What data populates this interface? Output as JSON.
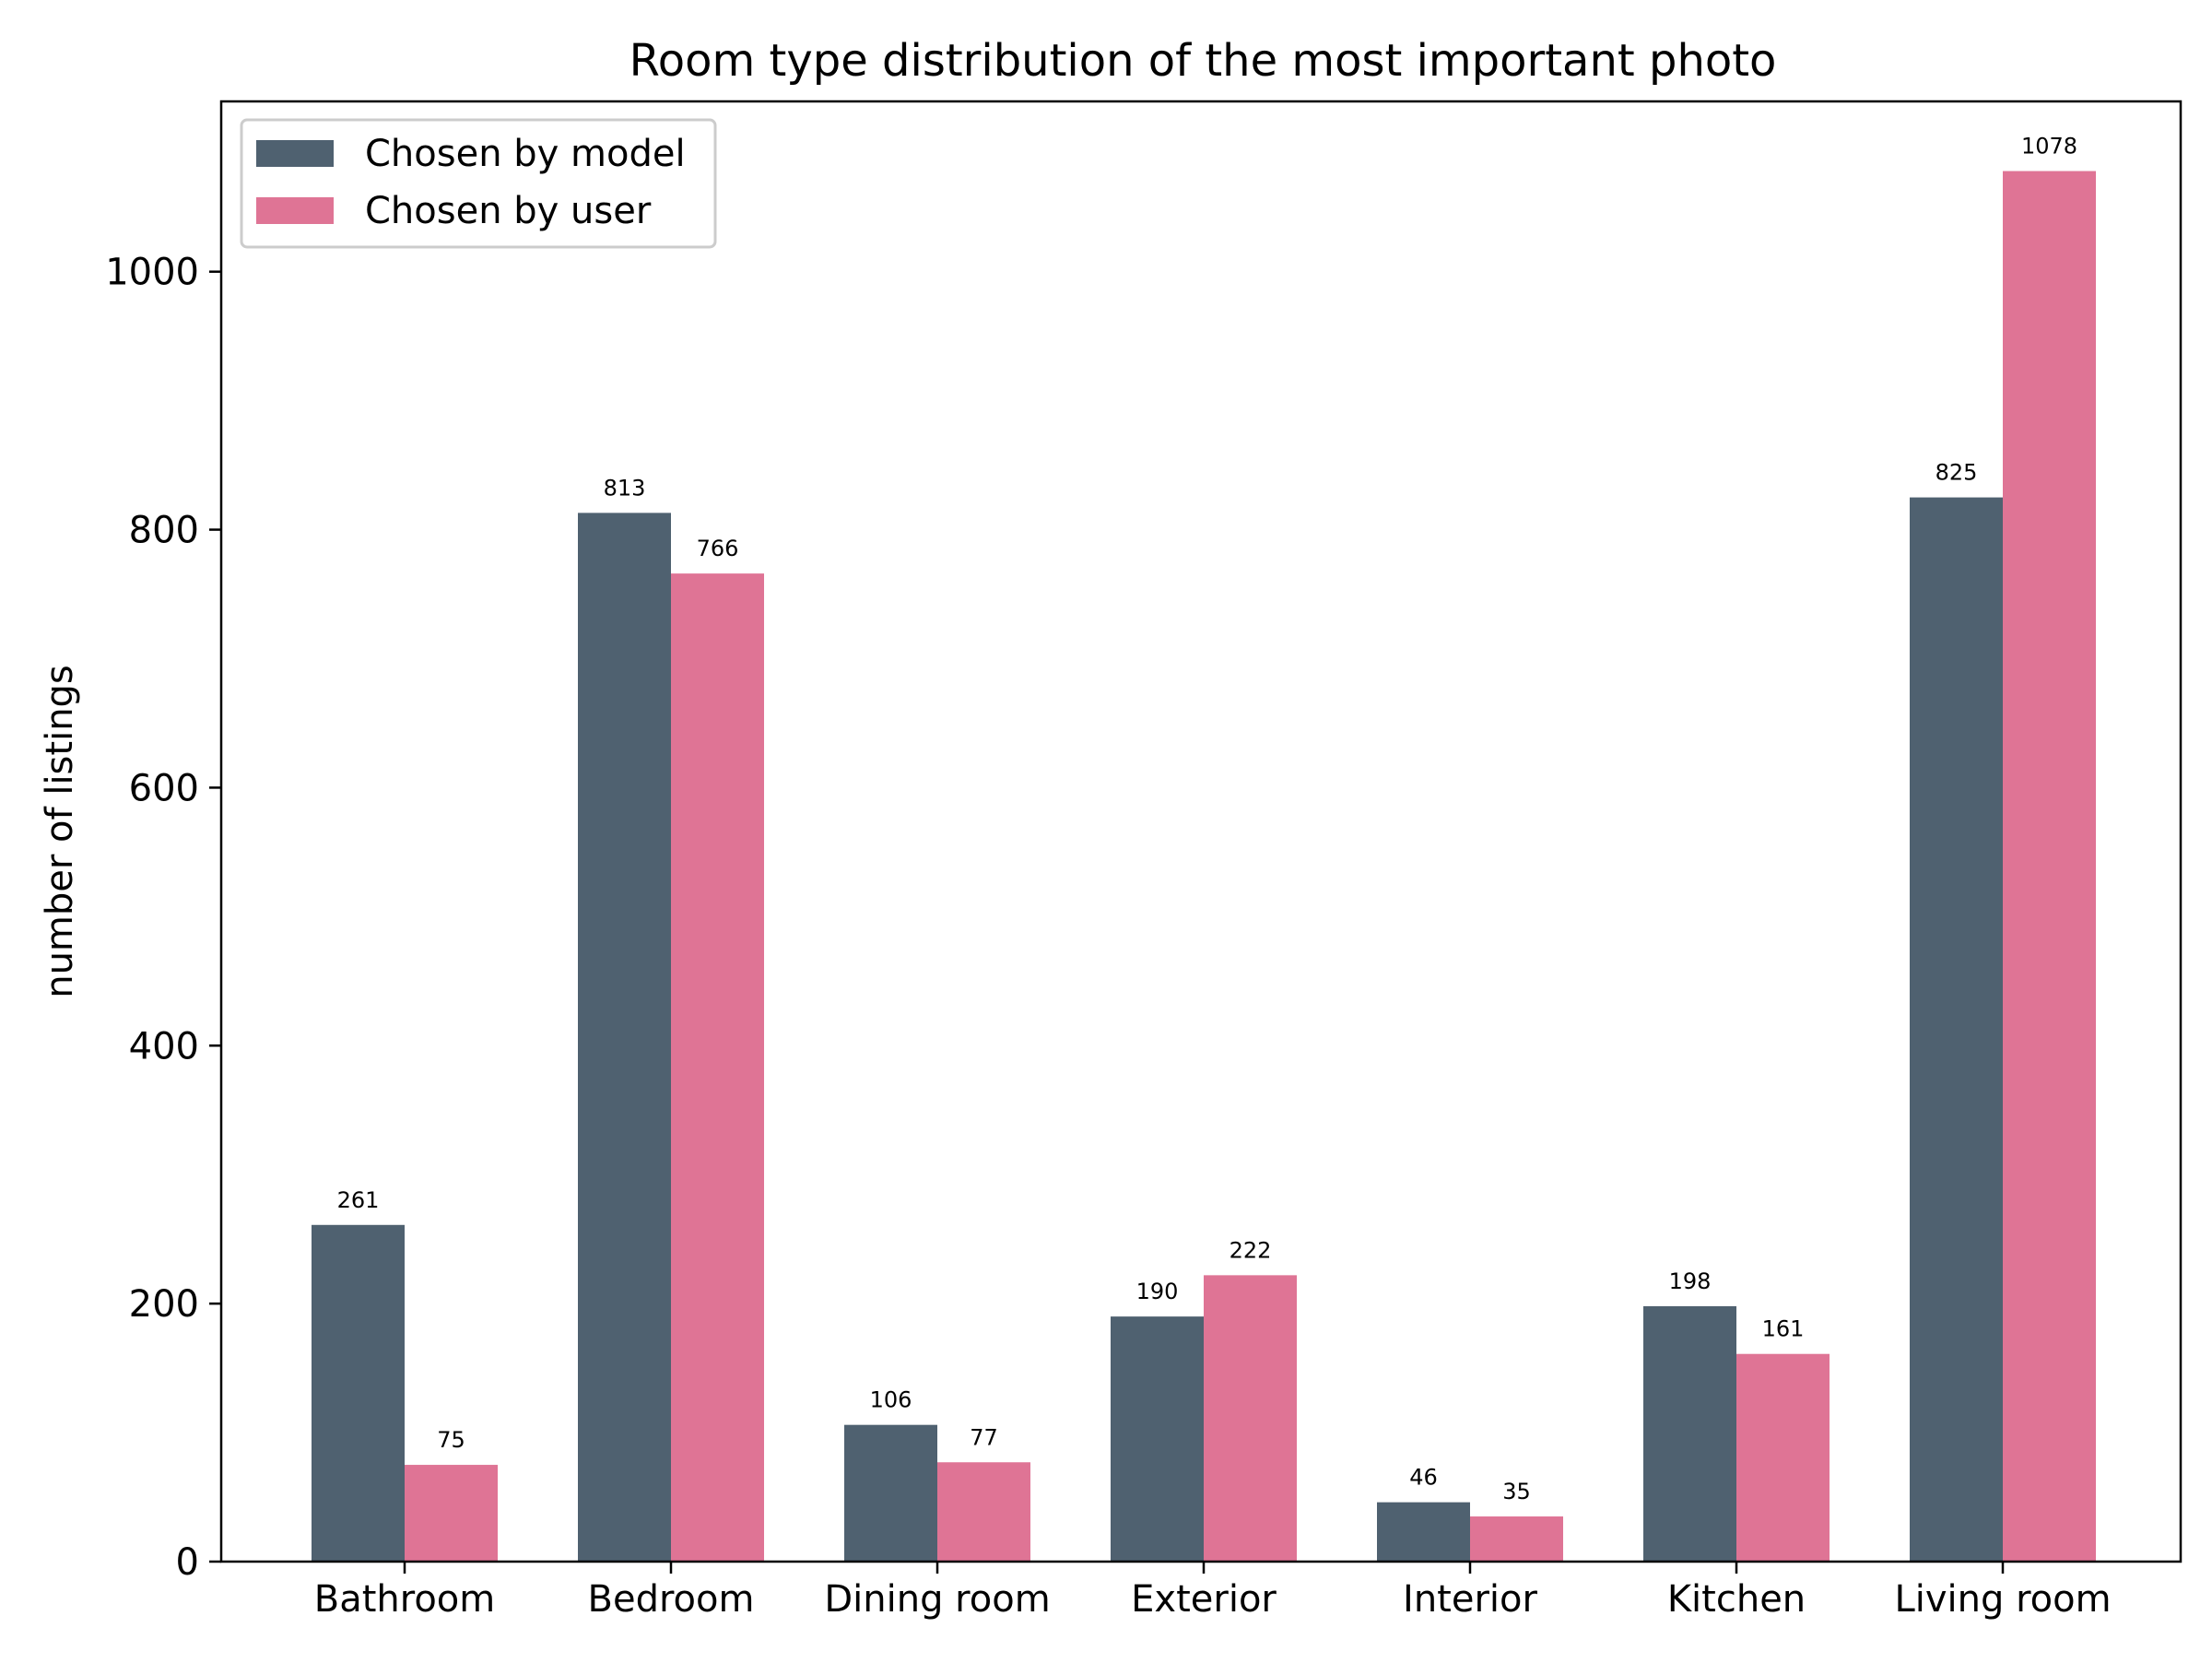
{
  "chart_data": {
    "type": "bar",
    "title": "Room type distribution of the most important photo",
    "xlabel": "",
    "ylabel": "number of listings",
    "categories": [
      "Bathroom",
      "Bedroom",
      "Dining room",
      "Exterior",
      "Interior",
      "Kitchen",
      "Living room"
    ],
    "series": [
      {
        "name": "Chosen by model",
        "color": "#4f6170",
        "values": [
          261,
          813,
          106,
          190,
          46,
          198,
          825
        ]
      },
      {
        "name": "Chosen by user",
        "color": "#df7495",
        "values": [
          75,
          766,
          77,
          222,
          35,
          161,
          1078
        ]
      }
    ],
    "ylim": [
      0,
      1132
    ],
    "yticks": [
      0,
      200,
      400,
      600,
      800,
      1000
    ],
    "grid": false,
    "legend_position": "top-left",
    "show_value_labels": true
  }
}
